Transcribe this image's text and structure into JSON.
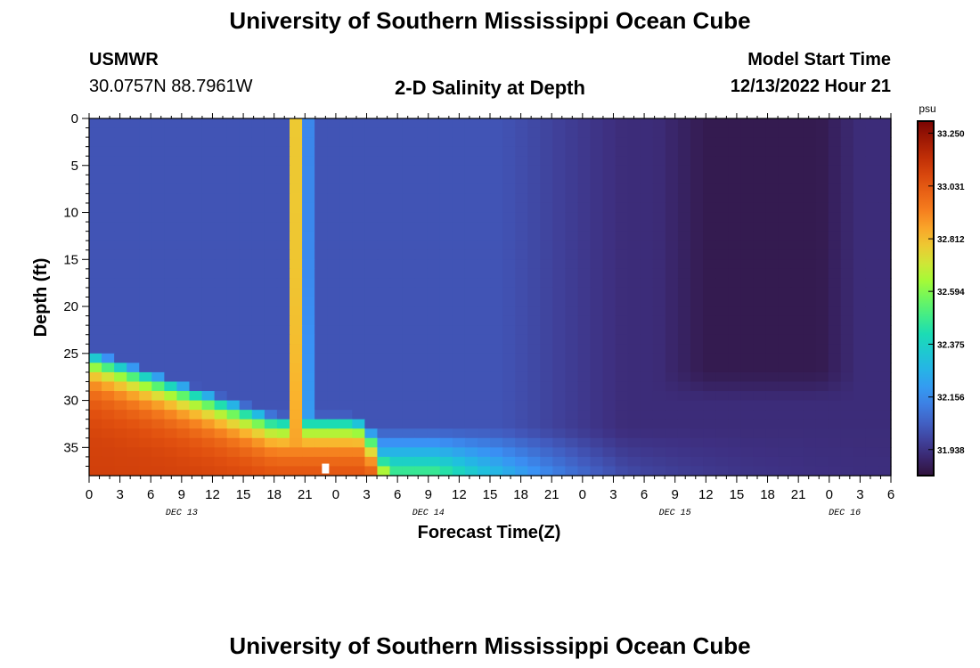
{
  "header": {
    "title": "University of Southern Mississippi Ocean Cube",
    "station": "USMWR",
    "coords": "30.0757N  88.7961W",
    "subtitle": "2-D Salinity at Depth",
    "model_label": "Model Start Time",
    "model_time": "12/13/2022 Hour 21"
  },
  "footer": {
    "title": "University of Southern Mississippi Ocean Cube"
  },
  "chart_data": {
    "type": "heatmap",
    "title": "2-D Salinity at Depth",
    "xlabel": "Forecast Time(Z)",
    "ylabel": "Depth (ft)",
    "x_unit": "hours",
    "y_range": [
      0,
      38
    ],
    "y_ticks": [
      0,
      5,
      10,
      15,
      20,
      25,
      30,
      35
    ],
    "x_tick_labels": [
      "0",
      "3",
      "6",
      "9",
      "12",
      "15",
      "18",
      "21",
      "0",
      "3",
      "6",
      "9",
      "12",
      "15",
      "18",
      "21",
      "0",
      "3",
      "6",
      "9",
      "12",
      "15",
      "18",
      "21",
      "0",
      "3",
      "6"
    ],
    "date_labels": [
      {
        "label": "DEC 13",
        "hour_index": 3
      },
      {
        "label": "DEC 14",
        "hour_index": 11
      },
      {
        "label": "DEC 15",
        "hour_index": 19
      },
      {
        "label": "DEC 16",
        "hour_index": 24.5
      }
    ],
    "colorbar": {
      "unit": "psu",
      "min": 31.83,
      "max": 33.3,
      "ticks": [
        "33.250",
        "33.031",
        "32.812",
        "32.594",
        "32.375",
        "32.156",
        "31.938"
      ],
      "tick_values": [
        33.25,
        33.031,
        32.812,
        32.594,
        32.375,
        32.156,
        31.938
      ]
    },
    "marker": {
      "hour": 23,
      "depth": 37.2
    },
    "grid_cols": 64,
    "grid_rows": 38,
    "grid": []
  }
}
